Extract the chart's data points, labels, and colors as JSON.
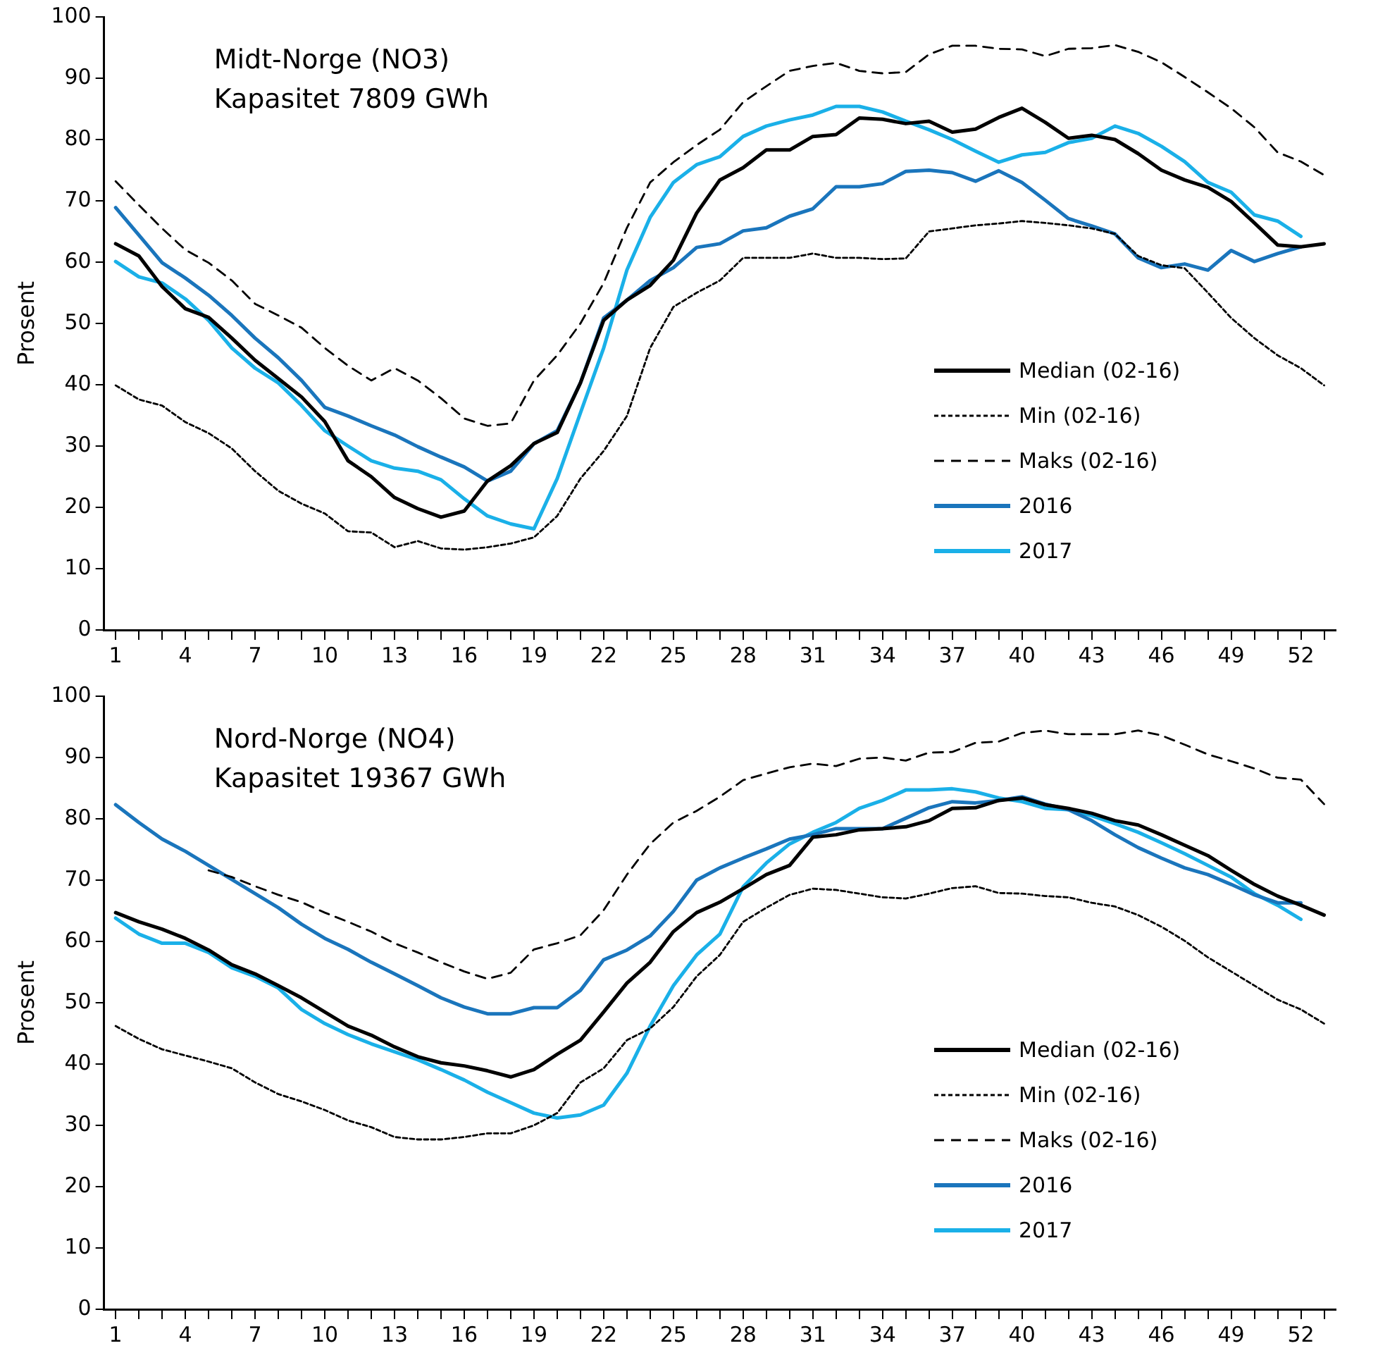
{
  "chart_data": [
    {
      "type": "line",
      "title": "Midt-Norge (NO3)",
      "subtitle": "Kapasitet 7809 GWh",
      "ylabel": "Prosent",
      "categories": [
        "1",
        null,
        null,
        "4",
        null,
        null,
        "7",
        null,
        null,
        "10",
        null,
        null,
        "13",
        null,
        null,
        "16",
        null,
        null,
        "19",
        null,
        null,
        "22",
        null,
        null,
        "25",
        null,
        null,
        "28",
        null,
        null,
        "31",
        null,
        null,
        "34",
        null,
        null,
        "37",
        null,
        null,
        "40",
        null,
        null,
        "43",
        null,
        null,
        "46",
        null,
        null,
        "49",
        null,
        null,
        "52",
        null
      ],
      "ylim": [
        0,
        100
      ],
      "yticks": [
        0,
        10,
        20,
        30,
        40,
        50,
        60,
        70,
        80,
        90,
        100
      ],
      "grid": false,
      "legend": "bottom right",
      "marker": "none",
      "series": [
        {
          "name": "Median (02-16)",
          "color": "#000000",
          "line_style": "solid",
          "values": [
            63,
            61,
            56,
            52.4,
            51,
            47.6,
            44,
            41,
            38,
            34,
            27.6,
            25,
            21.6,
            19.8,
            18.4,
            19.4,
            24.3,
            26.8,
            30.4,
            32.2,
            40.3,
            50.5,
            53.8,
            56.2,
            60.3,
            68,
            73.4,
            75.4,
            78.3,
            78.3,
            80.5,
            80.8,
            83.5,
            83.3,
            82.6,
            83,
            81.2,
            81.7,
            83.6,
            85.1,
            82.8,
            80.2,
            80.7,
            80,
            77.7,
            75,
            73.4,
            72.2,
            69.9,
            66.4,
            62.8,
            62.5,
            63
          ]
        },
        {
          "name": "Min (02-16)",
          "color": "#000000",
          "line_style": "dotted",
          "values": [
            39.9,
            37.6,
            36.6,
            33.9,
            32.1,
            29.6,
            25.9,
            22.7,
            20.6,
            19,
            16.1,
            15.9,
            13.5,
            14.5,
            13.3,
            13.1,
            13.5,
            14.1,
            15.1,
            18.6,
            24.7,
            29.2,
            34.9,
            46,
            52.7,
            55,
            57,
            60.7,
            60.7,
            60.7,
            61.4,
            60.7,
            60.7,
            60.5,
            60.6,
            65,
            65.5,
            66,
            66.3,
            66.7,
            66.4,
            66,
            65.5,
            64.6,
            61,
            59.5,
            59,
            55,
            50.9,
            47.6,
            44.8,
            42.7,
            39.9
          ]
        },
        {
          "name": "Maks (02-16)",
          "color": "#000000",
          "line_style": "dashed",
          "values": [
            73.2,
            69.3,
            65.5,
            62,
            59.9,
            57,
            53.2,
            51.3,
            49.3,
            46,
            43.1,
            40.7,
            42.7,
            40.7,
            37.8,
            34.5,
            33.3,
            33.7,
            40.7,
            44.8,
            50,
            56.6,
            65.6,
            73,
            76.3,
            79.1,
            81.6,
            86.1,
            88.7,
            91.2,
            92,
            92.5,
            91.2,
            90.8,
            91,
            93.9,
            95.3,
            95.3,
            94.8,
            94.7,
            93.6,
            94.8,
            94.9,
            95.4,
            94.3,
            92.6,
            90.2,
            87.7,
            85.1,
            82,
            77.9,
            76.4,
            74.2
          ]
        },
        {
          "name": "2016",
          "color": "#1a75bc",
          "line_style": "solid",
          "values": [
            68.9,
            64.4,
            59.9,
            57.4,
            54.6,
            51.3,
            47.6,
            44.4,
            40.7,
            36.3,
            34.9,
            33.3,
            31.8,
            29.9,
            28.2,
            26.6,
            24.3,
            25.9,
            30.4,
            32.5,
            40.3,
            50.9,
            53.8,
            57,
            59.1,
            62.4,
            63,
            65.1,
            65.6,
            67.5,
            68.7,
            72.3,
            72.3,
            72.8,
            74.8,
            75,
            74.6,
            73.2,
            74.9,
            73,
            70.1,
            67.1,
            65.9,
            64.6,
            60.7,
            59.1,
            59.7,
            58.7,
            61.9,
            60.1,
            61.4,
            62.5,
            null
          ]
        },
        {
          "name": "2017",
          "color": "#1ab0e8",
          "line_style": "solid",
          "values": [
            60.1,
            57.6,
            56.6,
            54,
            50.5,
            46,
            42.7,
            40.3,
            36.6,
            32.5,
            30,
            27.6,
            26.4,
            25.9,
            24.5,
            21.4,
            18.6,
            17.3,
            16.5,
            24.7,
            35.4,
            46,
            58.7,
            67.3,
            73,
            75.9,
            77.2,
            80.5,
            82.2,
            83.2,
            84,
            85.4,
            85.4,
            84.5,
            83,
            81.6,
            80,
            78.1,
            76.3,
            77.5,
            77.9,
            79.5,
            80.2,
            82.2,
            81,
            78.9,
            76.4,
            73,
            71.4,
            67.7,
            66.7,
            64.2,
            null
          ]
        }
      ]
    },
    {
      "type": "line",
      "title": "Nord-Norge (NO4)",
      "subtitle": "Kapasitet 19367 GWh",
      "ylabel": "Prosent",
      "categories": [
        "1",
        null,
        null,
        "4",
        null,
        null,
        "7",
        null,
        null,
        "10",
        null,
        null,
        "13",
        null,
        null,
        "16",
        null,
        null,
        "19",
        null,
        null,
        "22",
        null,
        null,
        "25",
        null,
        null,
        "28",
        null,
        null,
        "31",
        null,
        null,
        "34",
        null,
        null,
        "37",
        null,
        null,
        "40",
        null,
        null,
        "43",
        null,
        null,
        "46",
        null,
        null,
        "49",
        null,
        null,
        "52",
        null
      ],
      "ylim": [
        0,
        100
      ],
      "yticks": [
        0,
        10,
        20,
        30,
        40,
        50,
        60,
        70,
        80,
        90,
        100
      ],
      "grid": false,
      "legend": "bottom right",
      "marker": "none",
      "series": [
        {
          "name": "Median (02-16)",
          "color": "#000000",
          "line_style": "solid",
          "values": [
            64.7,
            63.2,
            62,
            60.5,
            58.6,
            56.2,
            54.7,
            52.8,
            50.8,
            48.5,
            46.2,
            44.7,
            42.8,
            41.2,
            40.2,
            39.7,
            38.9,
            37.9,
            39.1,
            41.6,
            43.9,
            48.5,
            53.2,
            56.6,
            61.6,
            64.7,
            66.4,
            68.6,
            70.9,
            72.4,
            77,
            77.4,
            78.2,
            78.4,
            78.7,
            79.7,
            81.7,
            81.8,
            83,
            83.4,
            82.3,
            81.7,
            80.9,
            79.7,
            79,
            77.4,
            75.7,
            74,
            71.6,
            69.3,
            67.4,
            65.9,
            64.3
          ]
        },
        {
          "name": "Min (02-16)",
          "color": "#000000",
          "line_style": "dotted",
          "values": [
            46.2,
            44.1,
            42.4,
            41.4,
            40.4,
            39.3,
            37,
            35.1,
            33.9,
            32.5,
            30.8,
            29.7,
            28.1,
            27.7,
            27.7,
            28.1,
            28.7,
            28.7,
            30,
            32,
            37,
            39.3,
            43.9,
            45.8,
            49.3,
            54.3,
            57.8,
            63.2,
            65.5,
            67.6,
            68.6,
            68.4,
            67.8,
            67.2,
            67,
            67.8,
            68.7,
            69,
            67.9,
            67.8,
            67.4,
            67.2,
            66.3,
            65.7,
            64.3,
            62.4,
            60.1,
            57.4,
            55.1,
            52.8,
            50.5,
            48.9,
            46.6
          ]
        },
        {
          "name": "Maks (02-16)",
          "color": "#000000",
          "line_style": "dashed",
          "values": [
            null,
            null,
            null,
            null,
            71.6,
            70.5,
            69,
            67.6,
            66.4,
            64.7,
            63.2,
            61.6,
            59.7,
            58.2,
            56.6,
            55.1,
            53.9,
            54.9,
            58.7,
            59.7,
            61,
            65.1,
            70.9,
            75.9,
            79.4,
            81.3,
            83.6,
            86.3,
            87.4,
            88.4,
            89,
            88.6,
            89.8,
            90,
            89.5,
            90.8,
            90.9,
            92.4,
            92.6,
            94,
            94.4,
            93.8,
            93.8,
            93.8,
            94.4,
            93.6,
            92.1,
            90.5,
            89.4,
            88.2,
            86.7,
            86.4,
            82.4
          ]
        },
        {
          "name": "2016",
          "color": "#1a75bc",
          "line_style": "solid",
          "values": [
            82.3,
            79.4,
            76.7,
            74.7,
            72.4,
            70.1,
            67.8,
            65.5,
            62.8,
            60.5,
            58.7,
            56.6,
            54.7,
            52.8,
            50.8,
            49.3,
            48.2,
            48.2,
            49.2,
            49.2,
            52,
            57,
            58.6,
            60.9,
            64.9,
            70,
            72,
            73.6,
            75.1,
            76.7,
            77.4,
            78.4,
            78.4,
            78.4,
            80.1,
            81.8,
            82.8,
            82.6,
            83,
            83.6,
            82.4,
            81.5,
            79.7,
            77.4,
            75.3,
            73.6,
            72,
            70.9,
            69.3,
            67.6,
            66.3,
            66.3,
            null
          ]
        },
        {
          "name": "2017",
          "color": "#1ab0e8",
          "line_style": "solid",
          "values": [
            63.8,
            61.2,
            59.7,
            59.7,
            58.2,
            55.7,
            54.3,
            52.4,
            48.9,
            46.6,
            44.8,
            43.3,
            42,
            40.7,
            39.1,
            37.4,
            35.4,
            33.7,
            32,
            31.2,
            31.7,
            33.3,
            38.5,
            46.2,
            52.8,
            57.8,
            61.2,
            68.9,
            72.8,
            75.9,
            77.8,
            79.4,
            81.7,
            83,
            84.7,
            84.7,
            84.9,
            84.4,
            83.4,
            82.8,
            81.7,
            81.5,
            80.5,
            79.2,
            77.8,
            76.1,
            74.3,
            72.4,
            70.5,
            67.8,
            65.9,
            63.6,
            null
          ]
        }
      ]
    }
  ]
}
